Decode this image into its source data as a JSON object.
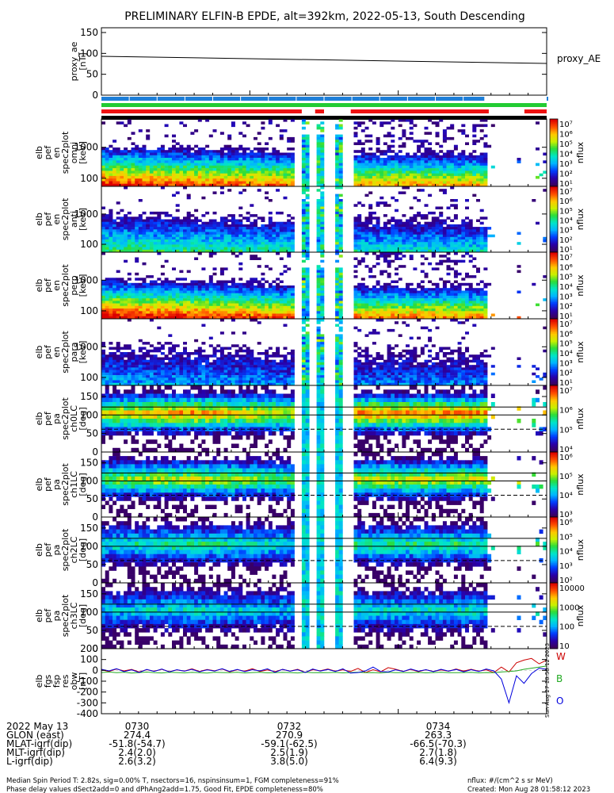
{
  "title": "PRELIMINARY ELFIN-B EPDE, alt=392km, 2022-05-13, South Descending",
  "colors": {
    "bar_blue": "#1e7fd9",
    "bar_green": "#22cc33",
    "bar_red": "#ee1111",
    "bar_black": "#000000",
    "mlt_line": "#000000"
  },
  "status_bars": [
    {
      "name": "blue",
      "color": "#1e7fd9",
      "on": [
        [
          0.0,
          0.86
        ],
        [
          1.0,
          1.0
        ]
      ]
    },
    {
      "name": "green",
      "color": "#22cc33",
      "on": [
        [
          0.0,
          1.0
        ]
      ]
    },
    {
      "name": "red",
      "color": "#ee1111",
      "on": [
        [
          0.0,
          0.45
        ],
        [
          0.48,
          0.5
        ],
        [
          0.56,
          0.87
        ],
        [
          0.95,
          1.0
        ]
      ]
    },
    {
      "name": "black",
      "color": "#000000",
      "on": [
        [
          0.0,
          1.0
        ]
      ]
    }
  ],
  "chart_data": [
    {
      "type": "line",
      "panel": "proxy_ae",
      "ylabel": "proxy_ae [nT]",
      "right_label": "proxy_AE",
      "ylim": [
        0,
        150
      ],
      "yticks": [
        "150",
        "100",
        "50",
        "0"
      ],
      "x": [
        0,
        1
      ],
      "values": [
        93,
        76
      ]
    },
    {
      "type": "heatmap",
      "panel": "elb_pef_en_spec2plot_omni",
      "ylabel": [
        "elb",
        "pef",
        "en",
        "spec2plot",
        "omni",
        "[keV]"
      ],
      "yticks": [
        "1000",
        "100"
      ],
      "colorbar": {
        "label": "nflux",
        "ticks": [
          "10^7",
          "10^6",
          "10^5",
          "10^4",
          "10^3",
          "10^2",
          "10^1"
        ]
      }
    },
    {
      "type": "heatmap",
      "panel": "elb_pef_en_spec2plot_anti",
      "ylabel": [
        "elb",
        "pef",
        "en",
        "spec2plot",
        "anti",
        "[keV]"
      ],
      "yticks": [
        "1000",
        "100"
      ],
      "colorbar": {
        "label": "nflux",
        "ticks": [
          "10^7",
          "10^6",
          "10^5",
          "10^4",
          "10^3",
          "10^2",
          "10^1"
        ]
      }
    },
    {
      "type": "heatmap",
      "panel": "elb_pef_en_spec2plot_perp",
      "ylabel": [
        "elb",
        "pef",
        "en",
        "spec2plot",
        "perp",
        "[keV]"
      ],
      "yticks": [
        "1000",
        "100"
      ],
      "colorbar": {
        "label": "nflux",
        "ticks": [
          "10^7",
          "10^6",
          "10^5",
          "10^4",
          "10^3",
          "10^2",
          "10^1"
        ]
      }
    },
    {
      "type": "heatmap",
      "panel": "elb_pef_en_spec2plot_para",
      "ylabel": [
        "elb",
        "pef",
        "en",
        "spec2plot",
        "para",
        "[keV]"
      ],
      "yticks": [
        "1000",
        "100"
      ],
      "colorbar": {
        "label": "nflux",
        "ticks": [
          "10^7",
          "10^6",
          "10^5",
          "10^4",
          "10^3",
          "10^2",
          "10^1"
        ]
      }
    },
    {
      "type": "heatmap",
      "panel": "elb_pef_pa_spec2plot_ch0LC",
      "ylabel": [
        "elb",
        "pef",
        "pa",
        "spec2plot",
        "ch0LC",
        "[deg]"
      ],
      "yticks": [
        "150",
        "100",
        "50",
        "0"
      ],
      "colorbar": {
        "label": "nflux",
        "ticks": [
          "10^7",
          "10^6",
          "10^5",
          "10^4"
        ]
      }
    },
    {
      "type": "heatmap",
      "panel": "elb_pef_pa_spec2plot_ch1LC",
      "ylabel": [
        "elb",
        "pef",
        "pa",
        "spec2plot",
        "ch1LC",
        "[deg]"
      ],
      "yticks": [
        "150",
        "100",
        "50",
        "0"
      ],
      "colorbar": {
        "label": "nflux",
        "ticks": [
          "10^6",
          "10^5",
          "10^4",
          "10^3"
        ]
      }
    },
    {
      "type": "heatmap",
      "panel": "elb_pef_pa_spec2plot_ch2LC",
      "ylabel": [
        "elb",
        "pef",
        "pa",
        "spec2plot",
        "ch2LC",
        "[deg]"
      ],
      "yticks": [
        "150",
        "100",
        "50",
        "0"
      ],
      "colorbar": {
        "label": "nflux",
        "ticks": [
          "10^6",
          "10^5",
          "10^4",
          "10^3",
          "10^2"
        ]
      }
    },
    {
      "type": "heatmap",
      "panel": "elb_pef_pa_spec2plot_ch3LC",
      "ylabel": [
        "elb",
        "pef",
        "pa",
        "spec2plot",
        "ch3LC",
        "[deg]"
      ],
      "yticks": [
        "150",
        "100",
        "50",
        "0"
      ],
      "colorbar": {
        "label": "nflux",
        "ticks": [
          "10000",
          "1000",
          "100",
          "10"
        ]
      }
    },
    {
      "type": "line",
      "panel": "elb_fgs_fsp_res_obw",
      "ylabel": [
        "elb",
        "fgs",
        "fsp",
        "res",
        "obw",
        "[nT]"
      ],
      "ylim": [
        -400,
        200
      ],
      "yticks": [
        "200",
        "100",
        "0",
        "-100",
        "-200",
        "-300",
        "-400"
      ],
      "series": [
        {
          "name": "W",
          "color": "#cc0000",
          "values": [
            5,
            -10,
            12,
            -5,
            8,
            -15,
            6,
            -8,
            10,
            -12,
            4,
            -6,
            14,
            -10,
            8,
            -4,
            12,
            -14,
            6,
            -8,
            15,
            -10,
            4,
            -12,
            8,
            -6,
            10,
            -18,
            6,
            -4,
            12,
            -8,
            5,
            -10,
            18,
            -20,
            6,
            -14,
            25,
            10,
            -10,
            8,
            -12,
            6,
            -10,
            4,
            -8,
            12,
            -6,
            10,
            -8,
            5,
            -20,
            30,
            -15,
            70,
            95,
            110,
            60,
            95
          ]
        },
        {
          "name": "B",
          "color": "#22aa22",
          "values": [
            -20,
            -15,
            -22,
            -18,
            -25,
            -20,
            -16,
            -22,
            -24,
            -18,
            -20,
            -23,
            -19,
            -21,
            -25,
            -18,
            -20,
            -22,
            -17,
            -24,
            -20,
            -18,
            -23,
            -21,
            -19,
            -20,
            -24,
            -18,
            -22,
            -20,
            -21,
            -19,
            -23,
            -20,
            -18,
            -22,
            -20,
            -24,
            -18,
            -21,
            -20,
            -22,
            -19,
            -23,
            -20,
            -18,
            -22,
            -21,
            -20,
            -19,
            -23,
            -20,
            -22,
            -15,
            -10,
            -5,
            10,
            20,
            30,
            40
          ]
        },
        {
          "name": "O",
          "color": "#0000dd",
          "values": [
            10,
            -5,
            15,
            -12,
            5,
            -20,
            8,
            -10,
            12,
            -15,
            6,
            -8,
            10,
            -14,
            5,
            -6,
            15,
            -10,
            8,
            -12,
            6,
            -5,
            14,
            -18,
            10,
            -8,
            6,
            -20,
            12,
            -6,
            8,
            -10,
            14,
            -25,
            -20,
            -5,
            30,
            -10,
            -15,
            5,
            -10,
            12,
            -8,
            6,
            -12,
            10,
            -6,
            8,
            -14,
            6,
            -10,
            12,
            -5,
            -80,
            -300,
            -50,
            -120,
            -30,
            20,
            10
          ]
        }
      ],
      "right_labels": [
        "W",
        "B",
        "O"
      ]
    }
  ],
  "footer_rows": [
    {
      "label": "2022 May 13",
      "values": [
        "0730",
        "0732",
        "0734"
      ]
    },
    {
      "label": "GLON (east)",
      "values": [
        "274.4",
        "270.9",
        "263.3"
      ]
    },
    {
      "label": "MLAT-igrf(dip)",
      "values": [
        "-51.8(-54.7)",
        "-59.1(-62.5)",
        "-66.5(-70.3)"
      ]
    },
    {
      "label": "MLT-igrf(dip)",
      "values": [
        "2.4(2.0)",
        "2.5(1.9)",
        "2.7(1.8)"
      ]
    },
    {
      "label": "L-igrf(dip)",
      "values": [
        "2.6(3.2)",
        "3.8(5.0)",
        "6.4(9.3)"
      ]
    }
  ],
  "bottom_text": {
    "line1": "Median Spin Period T: 2.82s, sig=0.00% T, nsectors=16, nspinsinsum=1, FGM completeness=91%",
    "line2": "Phase delay values dSect2add=0 and dPhAng2add=1.75, Good Fit, EPDE completeness=80%",
    "units": "nflux: #/(cm^2 s sr MeV)",
    "created": "Created: Mon Aug 28 01:58:12 2023"
  },
  "vertical_stamp": "Sun Aug 27 18:58:12 2023"
}
